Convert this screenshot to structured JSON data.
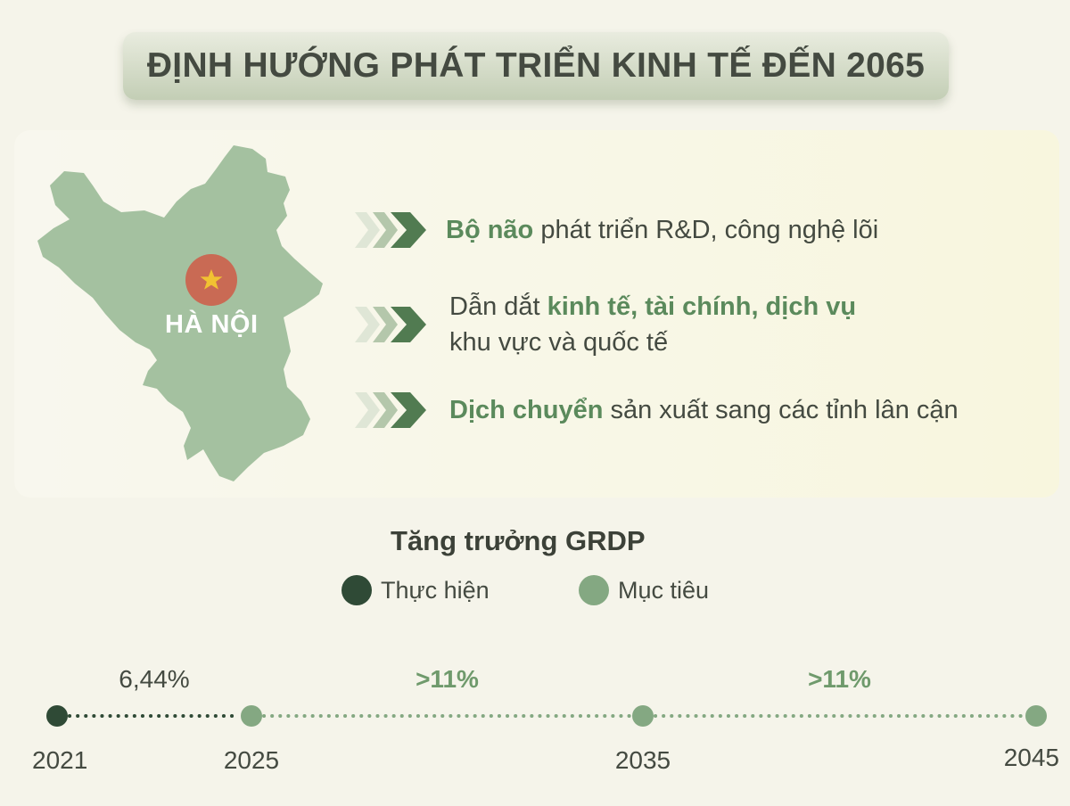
{
  "title": "ĐỊNH HƯỚNG PHÁT TRIỂN KINH TẾ ĐẾN 2065",
  "map": {
    "label": "HÀ NỘI",
    "icon": "star-icon"
  },
  "points": [
    {
      "line1_highlight": "Bộ não",
      "line1_text": " phát triển R&D, công nghệ lõi",
      "line2": ""
    },
    {
      "line1_prefix": "Dẫn dắt ",
      "line1_highlight": "kinh tế, tài chính, dịch vụ",
      "line2": "khu vực và quốc tế"
    },
    {
      "line1_highlight": "Dịch chuyển",
      "line1_text": " sản xuất sang các tỉnh lân cận",
      "line2": ""
    }
  ],
  "chart_data": {
    "type": "timeline",
    "title": "Tăng trưởng GRDP",
    "legend": [
      {
        "name": "Thực hiện",
        "color": "#2f4a36"
      },
      {
        "name": "Mục tiêu",
        "color": "#84a882"
      }
    ],
    "x": [
      2021,
      2025,
      2035,
      2045
    ],
    "year_labels": [
      "2021",
      "2025",
      "2035",
      "2045"
    ],
    "segments": [
      {
        "from": 2021,
        "to": 2025,
        "label": "6,44%",
        "series": "Thực hiện"
      },
      {
        "from": 2025,
        "to": 2035,
        "label": ">11%",
        "series": "Mục tiêu"
      },
      {
        "from": 2035,
        "to": 2045,
        "label": ">11%",
        "series": "Mục tiêu"
      }
    ]
  },
  "colors": {
    "accent": "#5b8a5c",
    "map_fill": "#a4c1a0",
    "marker": "#c96a54",
    "star": "#f1c232",
    "text": "#444a41"
  }
}
